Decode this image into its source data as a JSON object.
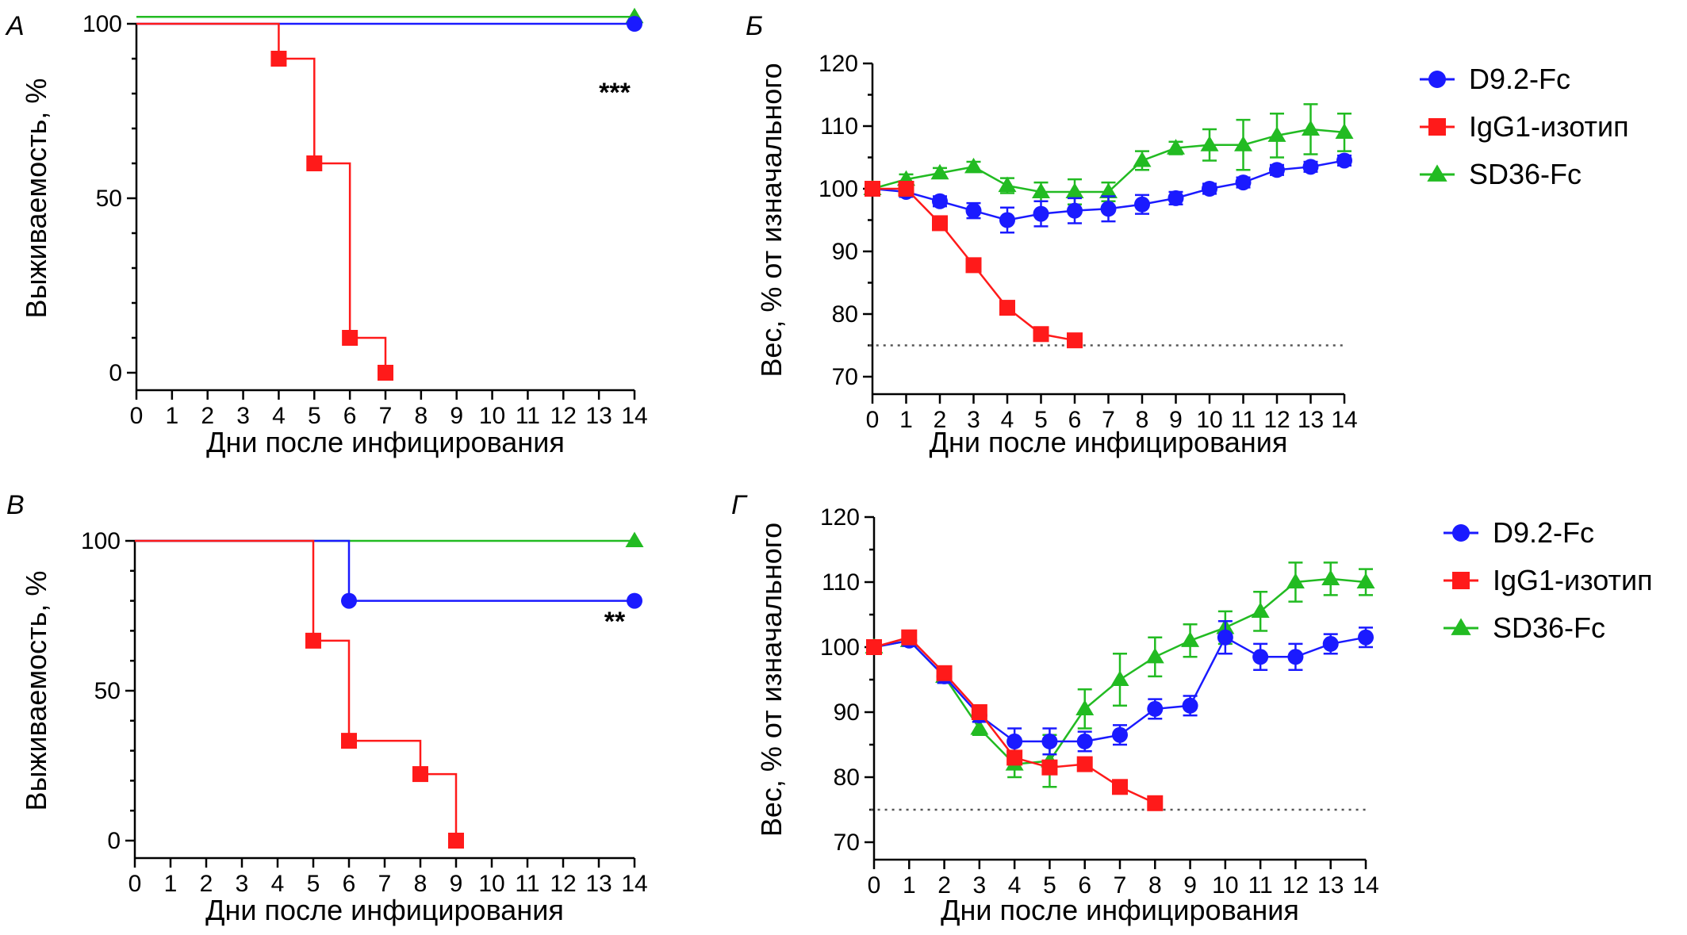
{
  "colors": {
    "blue": "#1a1aff",
    "red": "#ff1a1a",
    "green": "#22bb22",
    "threshold": "#555555"
  },
  "chart_data": [
    {
      "id": "A",
      "type": "line",
      "panel_letter": "А",
      "xlabel": "Дни после инфицирования",
      "ylabel": "Выживаемость, %",
      "xlim": [
        0,
        14
      ],
      "ylim": [
        0,
        100
      ],
      "xticks": [
        0,
        1,
        2,
        3,
        4,
        5,
        6,
        7,
        8,
        9,
        10,
        11,
        12,
        13,
        14
      ],
      "yticks": [
        0,
        50,
        100
      ],
      "step": true,
      "annotation": "***",
      "series": [
        {
          "color": "green",
          "marker": "triangle",
          "points": [
            [
              0,
              102
            ],
            [
              14,
              102
            ]
          ],
          "markers": [
            [
              14,
              102
            ]
          ]
        },
        {
          "color": "blue",
          "marker": "circle",
          "points": [
            [
              0,
              100
            ],
            [
              14,
              100
            ]
          ],
          "markers": [
            [
              14,
              100
            ]
          ]
        },
        {
          "color": "red",
          "marker": "square",
          "points": [
            [
              0,
              100
            ],
            [
              4,
              100
            ],
            [
              4,
              90
            ],
            [
              5,
              90
            ],
            [
              5,
              60
            ],
            [
              6,
              60
            ],
            [
              6,
              10
            ],
            [
              7,
              10
            ],
            [
              7,
              0
            ]
          ],
          "markers": [
            [
              4,
              90
            ],
            [
              5,
              60
            ],
            [
              6,
              10
            ],
            [
              7,
              0
            ]
          ]
        }
      ]
    },
    {
      "id": "B",
      "type": "line",
      "panel_letter": "Б",
      "xlabel": "Дни после инфицирования",
      "ylabel": "Вес, % от изначального",
      "xlim": [
        0,
        14
      ],
      "ylim": [
        70,
        120
      ],
      "xticks": [
        0,
        1,
        2,
        3,
        4,
        5,
        6,
        7,
        8,
        9,
        10,
        11,
        12,
        13,
        14
      ],
      "yticks": [
        70,
        80,
        90,
        100,
        110,
        120
      ],
      "threshold": 75,
      "legend": [
        {
          "label": "D9.2-Fc",
          "color": "blue",
          "marker": "circle"
        },
        {
          "label": "IgG1-изотип",
          "color": "red",
          "marker": "square"
        },
        {
          "label": "SD36-Fc",
          "color": "green",
          "marker": "triangle"
        }
      ],
      "series": [
        {
          "name": "SD36-Fc",
          "color": "green",
          "marker": "triangle",
          "x": [
            0,
            1,
            2,
            3,
            4,
            5,
            6,
            7,
            8,
            9,
            10,
            11,
            12,
            13,
            14
          ],
          "y": [
            100,
            101.5,
            102.5,
            103.5,
            100.5,
            99.5,
            99.5,
            99.5,
            104.5,
            106.5,
            107,
            107,
            108.5,
            109.5,
            109
          ],
          "err": [
            0.5,
            0.8,
            0.8,
            0.8,
            1.2,
            1.5,
            2,
            1.5,
            1.5,
            1,
            2.5,
            4,
            3.5,
            4,
            3
          ]
        },
        {
          "name": "D9.2-Fc",
          "color": "blue",
          "marker": "circle",
          "x": [
            0,
            1,
            2,
            3,
            4,
            5,
            6,
            7,
            8,
            9,
            10,
            11,
            12,
            13,
            14
          ],
          "y": [
            100,
            99.5,
            98,
            96.5,
            95,
            96,
            96.5,
            96.8,
            97.5,
            98.5,
            100,
            101,
            103,
            103.5,
            104.5
          ],
          "err": [
            0.5,
            0.8,
            0.8,
            1.2,
            2,
            2,
            2,
            2,
            1.5,
            1,
            0.8,
            0.8,
            0.8,
            0.8,
            0.8
          ]
        },
        {
          "name": "IgG1-изотип",
          "color": "red",
          "marker": "square",
          "x": [
            0,
            1,
            2,
            3,
            4,
            5,
            6
          ],
          "y": [
            100,
            100,
            94.5,
            87.8,
            81,
            76.8,
            75.8
          ],
          "err": [
            0,
            0,
            0,
            0,
            0,
            0,
            0
          ]
        }
      ]
    },
    {
      "id": "C",
      "type": "line",
      "panel_letter": "В",
      "xlabel": "Дни после инфицирования",
      "ylabel": "Выживаемость, %",
      "xlim": [
        0,
        14
      ],
      "ylim": [
        0,
        100
      ],
      "xticks": [
        0,
        1,
        2,
        3,
        4,
        5,
        6,
        7,
        8,
        9,
        10,
        11,
        12,
        13,
        14
      ],
      "yticks": [
        0,
        50,
        100
      ],
      "step": true,
      "annotation": "**",
      "series": [
        {
          "color": "green",
          "marker": "triangle",
          "points": [
            [
              0,
              100
            ],
            [
              14,
              100
            ]
          ],
          "markers": [
            [
              14,
              100
            ]
          ]
        },
        {
          "color": "blue",
          "marker": "circle",
          "points": [
            [
              0,
              100
            ],
            [
              6,
              100
            ],
            [
              6,
              80
            ],
            [
              14,
              80
            ]
          ],
          "markers": [
            [
              6,
              80
            ],
            [
              14,
              80
            ]
          ]
        },
        {
          "color": "red",
          "marker": "square",
          "points": [
            [
              0,
              100
            ],
            [
              5,
              100
            ],
            [
              5,
              66.7
            ],
            [
              6,
              66.7
            ],
            [
              6,
              33.3
            ],
            [
              8,
              33.3
            ],
            [
              8,
              22.2
            ],
            [
              9,
              22.2
            ],
            [
              9,
              0
            ]
          ],
          "markers": [
            [
              5,
              66.7
            ],
            [
              6,
              33.3
            ],
            [
              8,
              22.2
            ],
            [
              9,
              0
            ]
          ]
        }
      ]
    },
    {
      "id": "D",
      "type": "line",
      "panel_letter": "Г",
      "xlabel": "Дни после инфицирования",
      "ylabel": "Вес, % от изначального",
      "xlim": [
        0,
        14
      ],
      "ylim": [
        70,
        120
      ],
      "xticks": [
        0,
        1,
        2,
        3,
        4,
        5,
        6,
        7,
        8,
        9,
        10,
        11,
        12,
        13,
        14
      ],
      "yticks": [
        70,
        80,
        90,
        100,
        110,
        120
      ],
      "threshold": 75,
      "legend": [
        {
          "label": "D9.2-Fc",
          "color": "blue",
          "marker": "circle"
        },
        {
          "label": "IgG1-изотип",
          "color": "red",
          "marker": "square"
        },
        {
          "label": "SD36-Fc",
          "color": "green",
          "marker": "triangle"
        }
      ],
      "series": [
        {
          "name": "SD36-Fc",
          "color": "green",
          "marker": "triangle",
          "x": [
            0,
            1,
            2,
            3,
            4,
            5,
            6,
            7,
            8,
            9,
            10,
            11,
            12,
            13,
            14
          ],
          "y": [
            100,
            101,
            95.5,
            87.5,
            82,
            82.5,
            90.5,
            95,
            98.5,
            101,
            103,
            105.5,
            110,
            110.5,
            110
          ],
          "err": [
            0.5,
            0.8,
            1,
            1,
            2,
            4,
            3,
            4,
            3,
            2.5,
            2.5,
            3,
            3,
            2.5,
            2
          ]
        },
        {
          "name": "D9.2-Fc",
          "color": "blue",
          "marker": "circle",
          "x": [
            0,
            1,
            2,
            3,
            4,
            5,
            6,
            7,
            8,
            9,
            10,
            11,
            12,
            13,
            14
          ],
          "y": [
            100,
            101,
            95.5,
            89.5,
            85.5,
            85.5,
            85.5,
            86.5,
            90.5,
            91,
            101.5,
            98.5,
            98.5,
            100.5,
            101.5
          ],
          "err": [
            0.5,
            0.8,
            1,
            1,
            2,
            2,
            1.5,
            1.5,
            1.5,
            1.5,
            2.5,
            2,
            2,
            1.5,
            1.5
          ]
        },
        {
          "name": "IgG1-изотип",
          "color": "red",
          "marker": "square",
          "x": [
            0,
            1,
            2,
            3,
            4,
            5,
            6,
            7,
            8
          ],
          "y": [
            100,
            101.5,
            96,
            90,
            83,
            81.5,
            82,
            78.5,
            76
          ],
          "err": [
            0,
            0,
            0,
            0,
            0,
            0,
            0,
            0,
            0
          ]
        }
      ]
    }
  ]
}
